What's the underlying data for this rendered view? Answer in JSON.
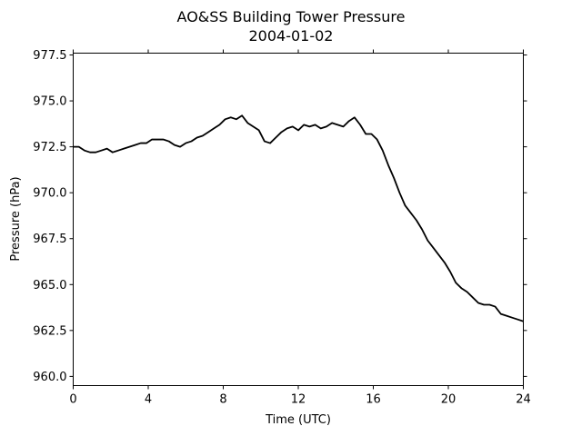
{
  "chart_data": {
    "type": "line",
    "title": "AO&SS Building Tower Pressure",
    "subtitle": "2004-01-02",
    "xlabel": "Time (UTC)",
    "ylabel": "Pressure (hPa)",
    "xlim": [
      0,
      24
    ],
    "ylim": [
      959.5,
      977.6
    ],
    "xticks": [
      0,
      4,
      8,
      12,
      16,
      20,
      24
    ],
    "yticks": [
      960.0,
      962.5,
      965.0,
      967.5,
      970.0,
      972.5,
      975.0,
      977.5
    ],
    "grid": false,
    "line_color": "#000000",
    "series": [
      {
        "x": [
          0,
          0.3,
          0.6,
          0.9,
          1.2,
          1.5,
          1.8,
          2.1,
          2.4,
          2.7,
          3.0,
          3.3,
          3.6,
          3.9,
          4.2,
          4.5,
          4.8,
          5.1,
          5.4,
          5.7,
          6.0,
          6.3,
          6.6,
          6.9,
          7.2,
          7.5,
          7.8,
          8.1,
          8.4,
          8.7,
          9.0,
          9.3,
          9.6,
          9.9,
          10.2,
          10.5,
          10.8,
          11.1,
          11.4,
          11.7,
          12.0,
          12.3,
          12.6,
          12.9,
          13.2,
          13.5,
          13.8,
          14.1,
          14.4,
          14.7,
          15.0,
          15.3,
          15.6,
          15.9,
          16.2,
          16.5,
          16.8,
          17.1,
          17.4,
          17.7,
          18.0,
          18.3,
          18.6,
          18.9,
          19.2,
          19.5,
          19.8,
          20.1,
          20.4,
          20.7,
          21.0,
          21.3,
          21.6,
          21.9,
          22.2,
          22.5,
          22.8,
          23.1,
          23.4,
          23.7,
          24.0
        ],
        "values": [
          972.5,
          972.5,
          972.3,
          972.2,
          972.2,
          972.3,
          972.4,
          972.2,
          972.3,
          972.4,
          972.5,
          972.6,
          972.7,
          972.7,
          972.9,
          972.9,
          972.9,
          972.8,
          972.6,
          972.5,
          972.7,
          972.8,
          973.0,
          973.1,
          973.3,
          973.5,
          973.7,
          974.0,
          974.1,
          974.0,
          974.2,
          973.8,
          973.6,
          973.4,
          972.8,
          972.7,
          973.0,
          973.3,
          973.5,
          973.6,
          973.4,
          973.7,
          973.6,
          973.7,
          973.5,
          973.6,
          973.8,
          973.7,
          973.6,
          973.9,
          974.1,
          973.7,
          973.2,
          973.2,
          972.9,
          972.3,
          971.5,
          970.8,
          970.0,
          969.3,
          968.9,
          968.5,
          968.0,
          967.4,
          967.0,
          966.6,
          966.2,
          965.7,
          965.1,
          964.8,
          964.6,
          964.3,
          964.0,
          963.9,
          963.9,
          963.8,
          963.4,
          963.3,
          963.2,
          963.1,
          963.0
        ]
      }
    ]
  }
}
